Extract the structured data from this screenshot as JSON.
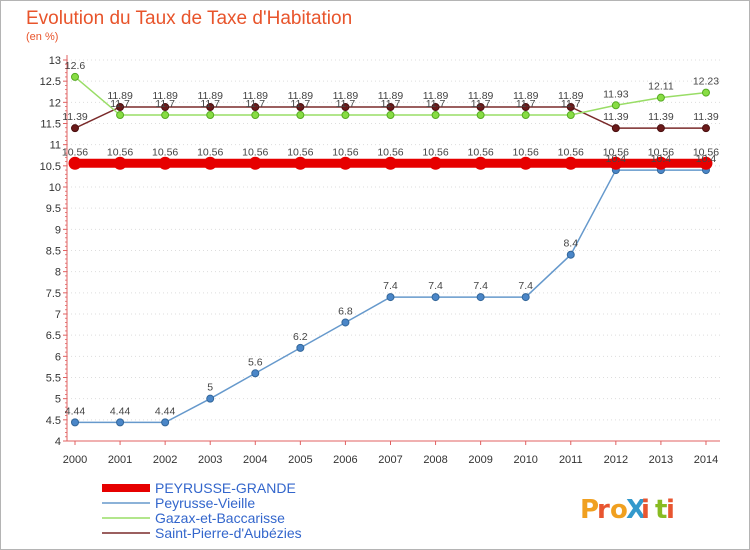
{
  "chart_data": {
    "type": "line",
    "title": "Evolution du Taux de Taxe d'Habitation",
    "subtitle": "(en %)",
    "ylim": [
      4,
      13
    ],
    "yticks": [
      "4",
      "4.5",
      "5",
      "5.5",
      "6",
      "6.5",
      "7",
      "7.5",
      "8",
      "8.5",
      "9",
      "9.5",
      "10",
      "10.5",
      "11",
      "11.5",
      "12",
      "12.5",
      "13"
    ],
    "x": [
      "2000",
      "2001",
      "2002",
      "2003",
      "2004",
      "2005",
      "2006",
      "2007",
      "2008",
      "2009",
      "2010",
      "2011",
      "2012",
      "2013",
      "2014"
    ],
    "series": [
      {
        "name": "PEYRUSSE-GRANDE",
        "color": "#e60000",
        "values": [
          10.56,
          10.56,
          10.56,
          10.56,
          10.56,
          10.56,
          10.56,
          10.56,
          10.56,
          10.56,
          10.56,
          10.56,
          10.56,
          10.56,
          10.56
        ],
        "labels": [
          "10.56",
          "10.56",
          "10.56",
          "10.56",
          "10.56",
          "10.56",
          "10.56",
          "10.56",
          "10.56",
          "10.56",
          "10.56",
          "10.56",
          "10.56",
          "10.56",
          "10.56"
        ]
      },
      {
        "name": "Peyrusse-Vieille",
        "color": "#6699cc",
        "values": [
          4.44,
          4.44,
          4.44,
          5,
          5.6,
          6.2,
          6.8,
          7.4,
          7.4,
          7.4,
          7.4,
          8.4,
          10.4,
          10.4,
          10.4
        ],
        "labels": [
          "4.44",
          "4.44",
          "4.44",
          "5",
          "5.6",
          "6.2",
          "6.8",
          "7.4",
          "7.4",
          "7.4",
          "7.4",
          "8.4",
          "10.4",
          "10.4",
          "10.4"
        ]
      },
      {
        "name": "Gazax-et-Baccarisse",
        "color": "#99dd66",
        "values": [
          12.6,
          11.7,
          11.7,
          11.7,
          11.7,
          11.7,
          11.7,
          11.7,
          11.7,
          11.7,
          11.7,
          11.7,
          11.93,
          12.11,
          12.23
        ],
        "labels": [
          "12.6",
          "11.7",
          "11.7",
          "11.7",
          "11.7",
          "11.7",
          "11.7",
          "11.7",
          "11.7",
          "11.7",
          "11.7",
          "11.7",
          "11.93",
          "12.11",
          "12.23"
        ]
      },
      {
        "name": "Saint-Pierre-d'Aubézies",
        "color": "#7a2a2a",
        "values": [
          11.39,
          11.89,
          11.89,
          11.89,
          11.89,
          11.89,
          11.89,
          11.89,
          11.89,
          11.89,
          11.89,
          11.89,
          11.39,
          11.39,
          11.39
        ],
        "labels": [
          "11.39",
          "11.89",
          "11.89",
          "11.89",
          "11.89",
          "11.89",
          "11.89",
          "11.89",
          "11.89",
          "11.89",
          "11.89",
          "11.89",
          "11.39",
          "11.39",
          "11.39"
        ]
      }
    ]
  },
  "logo": {
    "text": "ProXiti"
  }
}
